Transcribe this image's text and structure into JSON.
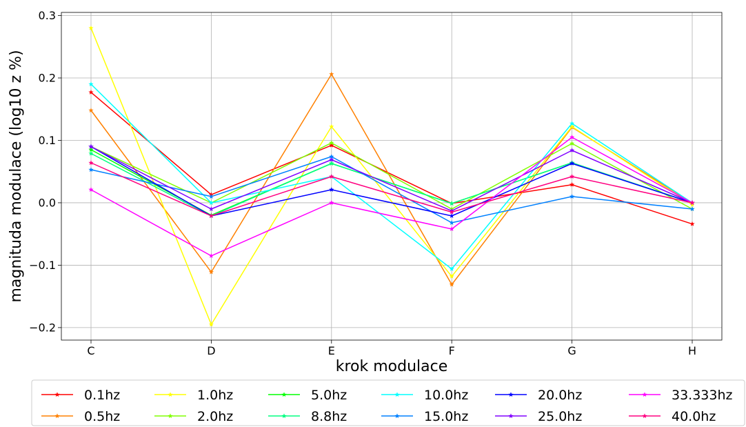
{
  "chart_data": {
    "type": "line",
    "title": "",
    "xlabel": "krok modulace",
    "ylabel": "magnituda modulace (log10 z %)",
    "categories": [
      "C",
      "D",
      "E",
      "F",
      "G",
      "H"
    ],
    "ylim": [
      -0.22,
      0.305
    ],
    "yticks": [
      -0.2,
      -0.1,
      0.0,
      0.1,
      0.2,
      0.3
    ],
    "ytick_labels": [
      "−0.2",
      "−0.1",
      "0.0",
      "0.1",
      "0.2",
      "0.3"
    ],
    "grid": true,
    "legend_position": "bottom",
    "legend_columns": 6,
    "series": [
      {
        "name": "0.1hz",
        "color": "#ff0000",
        "values": [
          0.177,
          0.013,
          0.092,
          -0.001,
          0.029,
          -0.034
        ]
      },
      {
        "name": "0.5hz",
        "color": "#ff8000",
        "values": [
          0.148,
          -0.111,
          0.206,
          -0.131,
          0.121,
          0.0
        ]
      },
      {
        "name": "1.0hz",
        "color": "#ffff00",
        "values": [
          0.28,
          -0.195,
          0.122,
          -0.118,
          0.122,
          -0.003
        ]
      },
      {
        "name": "2.0hz",
        "color": "#80ff00",
        "values": [
          0.09,
          0.0,
          0.096,
          -0.01,
          0.095,
          -0.01
        ]
      },
      {
        "name": "5.0hz",
        "color": "#00ff00",
        "values": [
          0.085,
          -0.02,
          0.063,
          -0.001,
          0.064,
          0.0
        ]
      },
      {
        "name": "8.8hz",
        "color": "#00ff80",
        "values": [
          0.079,
          -0.021,
          0.063,
          -0.001,
          0.064,
          0.0
        ]
      },
      {
        "name": "10.0hz",
        "color": "#00ffff",
        "values": [
          0.19,
          0.0,
          0.042,
          -0.106,
          0.127,
          0.0
        ]
      },
      {
        "name": "15.0hz",
        "color": "#0080ff",
        "values": [
          0.053,
          0.01,
          0.074,
          -0.032,
          0.01,
          -0.01
        ]
      },
      {
        "name": "20.0hz",
        "color": "#0000ff",
        "values": [
          0.09,
          -0.021,
          0.021,
          -0.021,
          0.063,
          0.0
        ]
      },
      {
        "name": "25.0hz",
        "color": "#8000ff",
        "values": [
          0.09,
          -0.01,
          0.069,
          -0.013,
          0.084,
          0.0
        ]
      },
      {
        "name": "33.333hz",
        "color": "#ff00ff",
        "values": [
          0.021,
          -0.085,
          0.0,
          -0.042,
          0.105,
          0.0
        ]
      },
      {
        "name": "40.0hz",
        "color": "#ff0080",
        "values": [
          0.064,
          -0.021,
          0.042,
          -0.015,
          0.042,
          0.0
        ]
      }
    ]
  }
}
